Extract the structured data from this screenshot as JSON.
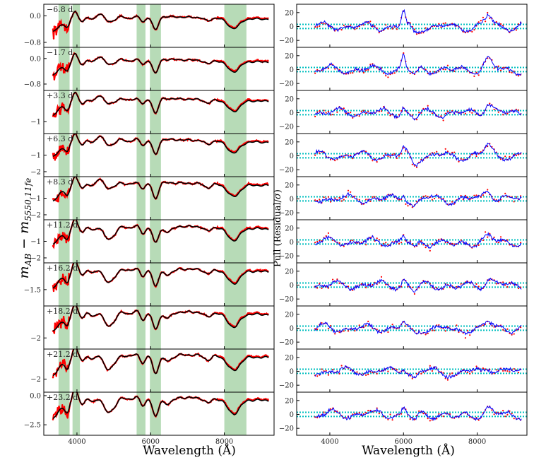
{
  "chart_data": {
    "type": "line",
    "xlim": [
      3100,
      9350
    ],
    "xticks": [
      4000,
      6000,
      8000
    ],
    "xlabel": "Wavelength (Å)",
    "left_ylabel": "m_AB − m_5550,11fe",
    "left_ylabel_main": "m",
    "left_ylabel_sub1": "AB",
    "left_ylabel_minus": " − m",
    "left_ylabel_sub2": "5550,11fe",
    "right_ylabel": "Pull (Residual/σ)",
    "right_ylabel_text": "Pull (Residual/",
    "right_ylabel_sigma": "σ",
    "right_ylabel_close": ")",
    "shaded_bands": [
      [
        3500,
        3800
      ],
      [
        3880,
        4080
      ],
      [
        5620,
        5860
      ],
      [
        5980,
        6280
      ],
      [
        8000,
        8600
      ]
    ],
    "band_color": "#9fcf9f",
    "data_color": "#ff0000",
    "model_color": "#000000",
    "pull_line_color": "#0000ff",
    "pull_ref_color": "#00bfbf",
    "left_panels": [
      {
        "phase": "−6.8 d",
        "ylim": [
          -0.95,
          0.35
        ],
        "yticks": [
          0.0,
          -0.8
        ],
        "ytick_labels": [
          "0.0",
          "−0.8"
        ]
      },
      {
        "phase": "−1.7 d",
        "ylim": [
          -1.0,
          0.35
        ],
        "yticks": [
          0.0,
          -0.8
        ],
        "ytick_labels": [
          "0.0",
          "−0.8"
        ]
      },
      {
        "phase": "+3.3 d",
        "ylim": [
          -1.5,
          0.3
        ],
        "yticks": [
          -1
        ],
        "ytick_labels": [
          "−1"
        ]
      },
      {
        "phase": "+6.3 d",
        "ylim": [
          -2.3,
          0.3
        ],
        "yticks": [
          -1,
          -2
        ],
        "ytick_labels": [
          "−1",
          "−2"
        ]
      },
      {
        "phase": "+8.3 d",
        "ylim": [
          -2.3,
          0.3
        ],
        "yticks": [
          -1,
          -2
        ],
        "ytick_labels": [
          "−1",
          "−2"
        ]
      },
      {
        "phase": "+11.2 d",
        "ylim": [
          -2.3,
          0.3
        ],
        "yticks": [
          -1,
          -2
        ],
        "ytick_labels": [
          "−1",
          "−2"
        ]
      },
      {
        "phase": "+16.2 d",
        "ylim": [
          -2.6,
          0.3
        ],
        "yticks": [
          -1.5
        ],
        "ytick_labels": [
          "−1.5"
        ]
      },
      {
        "phase": "+18.2 d",
        "ylim": [
          -2.8,
          0.3
        ],
        "yticks": [
          -2
        ],
        "ytick_labels": [
          "−2"
        ]
      },
      {
        "phase": "+21.2 d",
        "ylim": [
          -3.0,
          0.3
        ],
        "yticks": [
          -2
        ],
        "ytick_labels": [
          "−2"
        ]
      },
      {
        "phase": "+23.2 d",
        "ylim": [
          -3.4,
          0.3
        ],
        "yticks": [
          0.0,
          -2.5
        ],
        "ytick_labels": [
          "0.0",
          "−2.5"
        ]
      }
    ],
    "right_panels": {
      "ylim": [
        -30,
        32
      ],
      "yticks": [
        20,
        0,
        -20
      ],
      "ytick_labels": [
        "20",
        "0",
        "−20"
      ],
      "reference_lines": [
        3,
        -3
      ],
      "count": 10
    }
  }
}
